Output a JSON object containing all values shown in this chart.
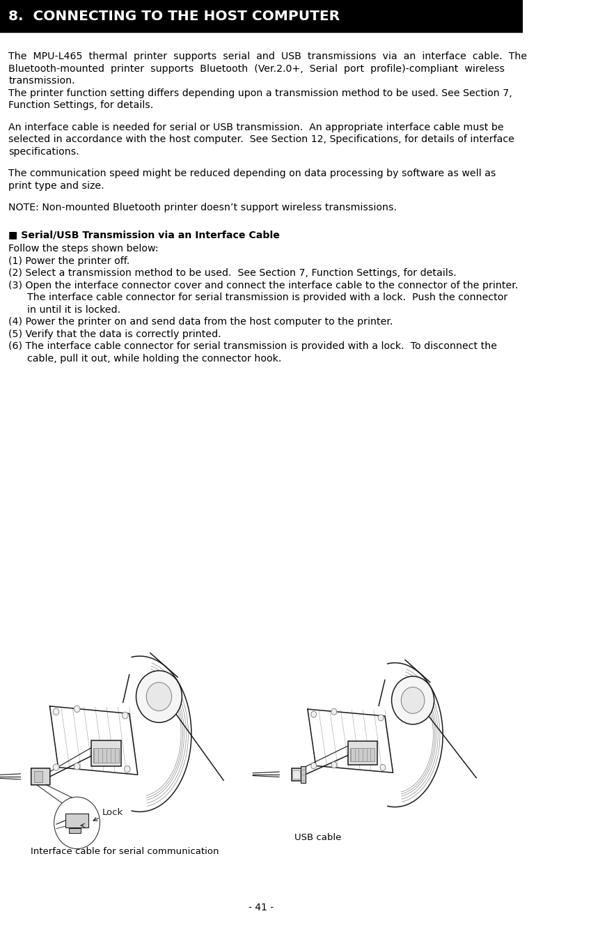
{
  "title": "8.  CONNECTING TO THE HOST COMPUTER",
  "title_bg": "#000000",
  "title_color": "#ffffff",
  "page_bg": "#ffffff",
  "text_color": "#000000",
  "page_number": "- 41 -",
  "para1_lines": [
    "The  MPU-L465  thermal  printer  supports  serial  and  USB  transmissions  via  an  interface  cable.  The",
    "Bluetooth-mounted  printer  supports  Bluetooth  (Ver.2.0+,  Serial  port  profile)-compliant  wireless",
    "transmission.",
    "The printer function setting differs depending upon a transmission method to be used. See Section 7,",
    "Function Settings, for details."
  ],
  "para2_lines": [
    "An interface cable is needed for serial or USB transmission.  An appropriate interface cable must be",
    "selected in accordance with the host computer.  See Section 12, Specifications, for details of interface",
    "specifications."
  ],
  "para3_lines": [
    "The communication speed might be reduced depending on data processing by software as well as",
    "print type and size."
  ],
  "para4_lines": [
    "NOTE: Non-mounted Bluetooth printer doesn’t support wireless transmissions."
  ],
  "section_head": "■ Serial/USB Transmission via an Interface Cable",
  "steps": [
    "Follow the steps shown below:",
    "(1) Power the printer off.",
    "(2) Select a transmission method to be used.  See Section 7, Function Settings, for details.",
    "(3) Open the interface connector cover and connect the interface cable to the connector of the printer.",
    "      The interface cable connector for serial transmission is provided with a lock.  Push the connector",
    "      in until it is locked.",
    "(4) Power the printer on and send data from the host computer to the printer.",
    "(5) Verify that the data is correctly printed.",
    "(6) The interface cable connector for serial transmission is provided with a lock.  To disconnect the",
    "      cable, pull it out, while holding the connector hook."
  ],
  "image_label_left": "Interface cable for serial communication",
  "image_label_right": "USB cable",
  "lock_label": "Lock"
}
